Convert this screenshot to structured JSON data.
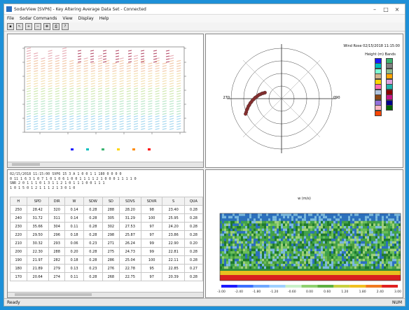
{
  "window": {
    "title": "SodarView [SVP6] - Key Altering Average Data Set - Connected",
    "controls": [
      "–",
      "□",
      "×"
    ]
  },
  "menu": [
    "File",
    "Sodar Commands",
    "View",
    "Display",
    "Help"
  ],
  "toolbar_icons": [
    "save-icon",
    "pointer-icon",
    "zoom-in-icon",
    "zoom-out-icon",
    "pan-icon",
    "print-icon",
    "help-icon"
  ],
  "polar": {
    "title": "Wind Rose 02/15/2018 11:15:00",
    "legend_title": "Height (m) Bands",
    "left_label": "270",
    "right_label": "090",
    "colors": [
      "#1a1aff",
      "#00bfbf",
      "#7fffd4",
      "#d2b48c",
      "#ffd700",
      "#ff69b4",
      "#b0c4de",
      "#8b4513",
      "#9370db",
      "#ffb6c1",
      "#ff4500",
      "#3cb371",
      "#808080",
      "#8fbc8f",
      "#ffa500",
      "#dda0dd",
      "#20b2aa",
      "#8b0000",
      "#c71585",
      "#00008b",
      "#006400"
    ],
    "points": [
      [
        290,
        14
      ],
      [
        287,
        15
      ],
      [
        285,
        16
      ],
      [
        282,
        17
      ],
      [
        280,
        18
      ],
      [
        277,
        19
      ],
      [
        274,
        20
      ],
      [
        272,
        21
      ],
      [
        269,
        22
      ],
      [
        267,
        23
      ],
      [
        264,
        24
      ],
      [
        262,
        25
      ],
      [
        259,
        26
      ],
      [
        257,
        27
      ],
      [
        254,
        28
      ],
      [
        252,
        29
      ],
      [
        249,
        30
      ],
      [
        247,
        31
      ]
    ]
  },
  "msgs": [
    "02/15/2018 11:15:00 SVP6 15 3 A 1 0 0 1 1 180 0 0 0 0",
    "0 11 1 6 3 1 0 7 1 0 1 0 6 1 0 0 1 1 1 1 2 1 0 0 0 1 1 1 1 0",
    "SNR 2 0 1 1 1 0 1 3 1 1 2 1 0 1 1 1 0 0 1 1 1",
    "1 0 1 5 0 1 2 1 1 1 2 1 3 0 1 0"
  ],
  "table": {
    "headers": [
      "H",
      "SPD",
      "DIR",
      "W",
      "SDW",
      "SD",
      "SDVS",
      "SDVR",
      "S",
      "QUA"
    ],
    "rows": [
      [
        "250",
        "28.42",
        "320",
        "0.14",
        "0.28",
        "288",
        "28.20",
        "98",
        "23.40",
        "0.28"
      ],
      [
        "240",
        "31.72",
        "311",
        "0.14",
        "0.28",
        "305",
        "31.29",
        "100",
        "25.95",
        "0.28"
      ],
      [
        "230",
        "35.66",
        "304",
        "0.11",
        "0.28",
        "302",
        "27.53",
        "97",
        "24.20",
        "0.28"
      ],
      [
        "220",
        "29.50",
        "296",
        "0.18",
        "0.28",
        "298",
        "25.87",
        "97",
        "23.86",
        "0.28"
      ],
      [
        "210",
        "30.32",
        "293",
        "0.06",
        "0.23",
        "271",
        "26.24",
        "99",
        "22.90",
        "0.20"
      ],
      [
        "200",
        "22.30",
        "288",
        "0.20",
        "0.28",
        "275",
        "24.73",
        "99",
        "22.81",
        "0.28"
      ],
      [
        "190",
        "21.97",
        "282",
        "0.18",
        "0.28",
        "286",
        "25.04",
        "100",
        "22.11",
        "0.28"
      ],
      [
        "180",
        "21.89",
        "279",
        "0.13",
        "0.23",
        "276",
        "22.78",
        "95",
        "22.85",
        "0.27"
      ],
      [
        "170",
        "20.64",
        "274",
        "0.11",
        "0.28",
        "268",
        "22.75",
        "97",
        "20.39",
        "0.28"
      ]
    ]
  },
  "waterfall": {
    "title": "w (m/s)",
    "scale_labels": [
      "-3.00",
      "-2.40",
      "-1.80",
      "-1.20",
      "-0.60",
      "0.00",
      "0.60",
      "1.20",
      "1.80",
      "2.40",
      "3.00"
    ]
  },
  "status": {
    "left": "Ready",
    "right": "NUM"
  }
}
